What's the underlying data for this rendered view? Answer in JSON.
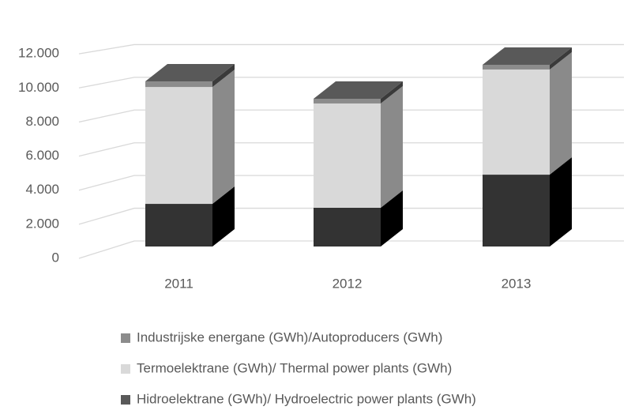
{
  "chart_data": {
    "type": "bar3d_stacked",
    "categories": [
      "2011",
      "2012",
      "2013"
    ],
    "series": [
      {
        "name": "Hidroelektrane (GWh)/ Hydroelectric power plants (GWh)",
        "color": "#333333",
        "values": [
          2510,
          2280,
          4230
        ]
      },
      {
        "name": "Termoelektrane (GWh)/ Thermal power plants (GWh)",
        "color": "#d9d9d9",
        "values": [
          6880,
          6140,
          6190
        ]
      },
      {
        "name": "Industrijske energane (GWh)/Autoproducers (GWh)",
        "color": "#8c8c8c",
        "values": [
          330,
          280,
          280
        ]
      }
    ],
    "ylim": [
      0,
      14000
    ],
    "yticks": [
      {
        "value": 0,
        "label": "0"
      },
      {
        "value": 2000,
        "label": "2.000"
      },
      {
        "value": 4000,
        "label": "4.000"
      },
      {
        "value": 6000,
        "label": "6.000"
      },
      {
        "value": 8000,
        "label": "8.000"
      },
      {
        "value": 10000,
        "label": "10.000"
      },
      {
        "value": 12000,
        "label": "12.000"
      }
    ],
    "grid": true,
    "legend": "bottom"
  }
}
